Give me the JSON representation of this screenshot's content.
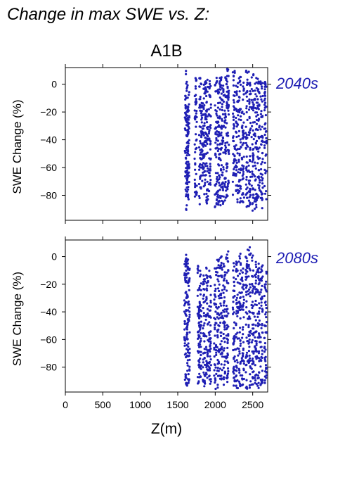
{
  "header": {
    "title": "Change in max SWE vs. Z:",
    "scenario": "A1B"
  },
  "colors": {
    "points": "#1f1fb4",
    "period_label": "#1f1fb4",
    "axis": "#000000"
  },
  "chart_data": [
    {
      "type": "scatter",
      "period_label": "2040s",
      "ylabel": "SWE Change (%)",
      "xlabel": "",
      "xlim": [
        0,
        2700
      ],
      "ylim": [
        -98,
        12
      ],
      "xticks": [
        0,
        500,
        1000,
        1500,
        2000,
        2500
      ],
      "yticks": [
        0,
        -20,
        -40,
        -60,
        -80
      ],
      "clusters": [
        {
          "x": 1610,
          "y_range": [
            -92,
            10
          ]
        },
        {
          "x": 1625,
          "y_range": [
            -88,
            2
          ]
        },
        {
          "x": 1640,
          "y_range": [
            -85,
            0
          ]
        },
        {
          "x": 1740,
          "y_range": [
            -82,
            5
          ]
        },
        {
          "x": 1800,
          "y_range": [
            -88,
            8
          ]
        },
        {
          "x": 1830,
          "y_range": [
            -70,
            -10
          ]
        },
        {
          "x": 1860,
          "y_range": [
            -80,
            3
          ]
        },
        {
          "x": 1890,
          "y_range": [
            -86,
            6
          ]
        },
        {
          "x": 1930,
          "y_range": [
            -78,
            4
          ]
        },
        {
          "x": 2010,
          "y_range": [
            -90,
            5
          ]
        },
        {
          "x": 2040,
          "y_range": [
            -87,
            2
          ]
        },
        {
          "x": 2070,
          "y_range": [
            -90,
            8
          ]
        },
        {
          "x": 2100,
          "y_range": [
            -88,
            4
          ]
        },
        {
          "x": 2140,
          "y_range": [
            -85,
            6
          ]
        },
        {
          "x": 2170,
          "y_range": [
            -82,
            11
          ]
        },
        {
          "x": 2250,
          "y_range": [
            -80,
            10
          ]
        },
        {
          "x": 2290,
          "y_range": [
            -89,
            4
          ]
        },
        {
          "x": 2330,
          "y_range": [
            -88,
            8
          ]
        },
        {
          "x": 2370,
          "y_range": [
            -86,
            3
          ]
        },
        {
          "x": 2420,
          "y_range": [
            -90,
            11
          ]
        },
        {
          "x": 2460,
          "y_range": [
            -88,
            10
          ]
        },
        {
          "x": 2500,
          "y_range": [
            -91,
            9
          ]
        },
        {
          "x": 2540,
          "y_range": [
            -90,
            6
          ]
        },
        {
          "x": 2580,
          "y_range": [
            -88,
            5
          ]
        },
        {
          "x": 2620,
          "y_range": [
            -90,
            4
          ]
        },
        {
          "x": 2670,
          "y_range": [
            -85,
            2
          ]
        }
      ]
    },
    {
      "type": "scatter",
      "period_label": "2080s",
      "ylabel": "SWE Change (%)",
      "xlabel": "Z(m)",
      "xlim": [
        0,
        2700
      ],
      "ylim": [
        -98,
        12
      ],
      "xticks": [
        0,
        500,
        1000,
        1500,
        2000,
        2500
      ],
      "yticks": [
        0,
        -20,
        -40,
        -60,
        -80
      ],
      "clusters": [
        {
          "x": 1600,
          "y_range": [
            -95,
            0
          ]
        },
        {
          "x": 1625,
          "y_range": [
            -95,
            2
          ]
        },
        {
          "x": 1645,
          "y_range": [
            -92,
            -5
          ]
        },
        {
          "x": 1780,
          "y_range": [
            -93,
            -5
          ]
        },
        {
          "x": 1800,
          "y_range": [
            -95,
            -8
          ]
        },
        {
          "x": 1850,
          "y_range": [
            -94,
            -12
          ]
        },
        {
          "x": 1890,
          "y_range": [
            -93,
            -6
          ]
        },
        {
          "x": 1930,
          "y_range": [
            -95,
            -10
          ]
        },
        {
          "x": 2000,
          "y_range": [
            -96,
            -5
          ]
        },
        {
          "x": 2040,
          "y_range": [
            -95,
            -2
          ]
        },
        {
          "x": 2080,
          "y_range": [
            -94,
            3
          ]
        },
        {
          "x": 2120,
          "y_range": [
            -95,
            -5
          ]
        },
        {
          "x": 2160,
          "y_range": [
            -92,
            6
          ]
        },
        {
          "x": 2250,
          "y_range": [
            -95,
            0
          ]
        },
        {
          "x": 2290,
          "y_range": [
            -96,
            -3
          ]
        },
        {
          "x": 2330,
          "y_range": [
            -94,
            3
          ]
        },
        {
          "x": 2370,
          "y_range": [
            -95,
            -8
          ]
        },
        {
          "x": 2420,
          "y_range": [
            -96,
            5
          ]
        },
        {
          "x": 2460,
          "y_range": [
            -95,
            7
          ]
        },
        {
          "x": 2500,
          "y_range": [
            -96,
            4
          ]
        },
        {
          "x": 2540,
          "y_range": [
            -95,
            -2
          ]
        },
        {
          "x": 2580,
          "y_range": [
            -96,
            -5
          ]
        },
        {
          "x": 2620,
          "y_range": [
            -95,
            -3
          ]
        },
        {
          "x": 2670,
          "y_range": [
            -92,
            -10
          ]
        }
      ]
    }
  ]
}
